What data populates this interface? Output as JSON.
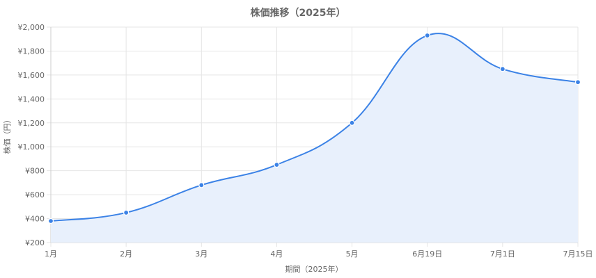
{
  "chart_data": {
    "type": "area",
    "title": "株価推移（2025年）",
    "xlabel": "期間（2025年）",
    "ylabel": "株価（円）",
    "categories": [
      "1月",
      "2月",
      "3月",
      "4月",
      "5月",
      "6月19日",
      "7月1日",
      "7月15日"
    ],
    "series": [
      {
        "values": [
          380,
          450,
          680,
          850,
          1200,
          1930,
          1650,
          1540
        ]
      }
    ],
    "ylim": [
      200,
      2000
    ],
    "y_ticks": [
      "¥200",
      "¥400",
      "¥600",
      "¥800",
      "¥1,000",
      "¥1,200",
      "¥1,400",
      "¥1,600",
      "¥1,800",
      "¥2,000"
    ],
    "y_tick_values": [
      200,
      400,
      600,
      800,
      1000,
      1200,
      1400,
      1600,
      1800,
      2000
    ],
    "grid": true,
    "line_color": "#3b82e6",
    "fill_color": "#e8f0fc"
  }
}
